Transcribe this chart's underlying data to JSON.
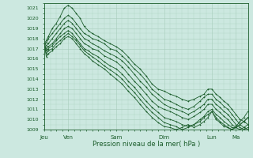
{
  "title": "",
  "xlabel": "Pression niveau de la mer( hPa )",
  "ylabel": "",
  "bg_color": "#cce8e0",
  "grid_color": "#a8ccbc",
  "line_color": "#1a5c2a",
  "ylim": [
    1009,
    1021.5
  ],
  "yticks": [
    1009,
    1010,
    1011,
    1012,
    1013,
    1014,
    1015,
    1016,
    1017,
    1018,
    1019,
    1020,
    1021
  ],
  "day_labels": [
    "Jeu",
    "Ven",
    "Sam",
    "Dim",
    "Lun",
    "Ma"
  ],
  "day_positions": [
    0,
    24,
    72,
    120,
    168,
    192
  ],
  "total_hours": 204,
  "lines": [
    {
      "x": [
        0,
        2,
        4,
        8,
        12,
        16,
        20,
        24,
        28,
        32,
        36,
        40,
        44,
        48,
        54,
        60,
        66,
        72,
        78,
        84,
        90,
        96,
        102,
        108,
        114,
        120,
        126,
        132,
        138,
        144,
        150,
        156,
        160,
        164,
        168,
        172,
        176,
        180,
        184,
        188,
        192,
        196,
        200,
        204
      ],
      "y": [
        1017.5,
        1017.8,
        1018.2,
        1019.0,
        1019.5,
        1020.2,
        1021.0,
        1021.3,
        1021.0,
        1020.5,
        1020.0,
        1019.2,
        1018.8,
        1018.5,
        1018.2,
        1017.8,
        1017.5,
        1017.2,
        1016.8,
        1016.2,
        1015.5,
        1015.0,
        1014.3,
        1013.5,
        1013.0,
        1012.8,
        1012.5,
        1012.3,
        1012.0,
        1011.8,
        1012.0,
        1012.3,
        1012.5,
        1013.0,
        1013.0,
        1012.5,
        1012.2,
        1011.8,
        1011.5,
        1011.0,
        1010.5,
        1010.0,
        1009.8,
        1009.5
      ]
    },
    {
      "x": [
        0,
        2,
        4,
        8,
        12,
        16,
        20,
        24,
        28,
        32,
        36,
        40,
        44,
        48,
        54,
        60,
        66,
        72,
        78,
        84,
        90,
        96,
        102,
        108,
        114,
        120,
        126,
        132,
        138,
        144,
        150,
        156,
        160,
        164,
        168,
        172,
        176,
        180,
        184,
        188,
        192,
        196,
        200,
        204
      ],
      "y": [
        1017.5,
        1017.6,
        1018.0,
        1018.5,
        1019.0,
        1019.5,
        1020.0,
        1020.3,
        1020.0,
        1019.5,
        1019.0,
        1018.5,
        1018.3,
        1018.0,
        1017.8,
        1017.5,
        1017.0,
        1016.8,
        1016.3,
        1015.7,
        1015.0,
        1014.5,
        1013.8,
        1013.0,
        1012.5,
        1012.0,
        1011.8,
        1011.5,
        1011.2,
        1011.0,
        1011.3,
        1011.8,
        1012.2,
        1012.5,
        1012.5,
        1012.0,
        1011.7,
        1011.3,
        1011.0,
        1010.5,
        1010.0,
        1009.5,
        1009.2,
        1009.0
      ]
    },
    {
      "x": [
        0,
        2,
        4,
        8,
        12,
        16,
        20,
        24,
        28,
        32,
        36,
        40,
        44,
        48,
        54,
        60,
        66,
        72,
        78,
        84,
        90,
        96,
        102,
        108,
        114,
        120,
        126,
        132,
        138,
        144,
        150,
        156,
        160,
        164,
        168,
        172,
        176,
        180,
        184,
        188,
        192,
        196,
        200,
        204
      ],
      "y": [
        1017.5,
        1017.3,
        1017.5,
        1018.0,
        1018.5,
        1019.0,
        1019.5,
        1019.8,
        1019.5,
        1019.0,
        1018.5,
        1018.0,
        1017.8,
        1017.5,
        1017.2,
        1016.8,
        1016.5,
        1016.2,
        1015.8,
        1015.2,
        1014.5,
        1013.8,
        1013.2,
        1012.5,
        1012.0,
        1011.5,
        1011.2,
        1011.0,
        1010.8,
        1010.5,
        1010.8,
        1011.2,
        1011.5,
        1012.0,
        1012.0,
        1011.5,
        1011.2,
        1010.8,
        1010.5,
        1010.0,
        1009.5,
        1009.2,
        1009.0,
        1009.2
      ]
    },
    {
      "x": [
        0,
        2,
        4,
        8,
        12,
        16,
        20,
        24,
        28,
        32,
        36,
        40,
        44,
        48,
        54,
        60,
        66,
        72,
        78,
        84,
        90,
        96,
        102,
        108,
        114,
        120,
        126,
        132,
        138,
        144,
        150,
        156,
        160,
        164,
        168,
        172,
        176,
        180,
        184,
        188,
        192,
        196,
        200,
        204
      ],
      "y": [
        1017.5,
        1017.0,
        1017.2,
        1017.5,
        1018.0,
        1018.5,
        1019.0,
        1019.2,
        1019.0,
        1018.5,
        1018.0,
        1017.5,
        1017.3,
        1017.0,
        1016.8,
        1016.3,
        1016.0,
        1015.7,
        1015.2,
        1014.5,
        1013.8,
        1013.2,
        1012.5,
        1011.8,
        1011.3,
        1011.0,
        1010.8,
        1010.5,
        1010.2,
        1010.0,
        1010.3,
        1010.7,
        1011.0,
        1011.5,
        1011.5,
        1011.0,
        1010.7,
        1010.3,
        1010.0,
        1009.5,
        1009.2,
        1009.0,
        1009.2,
        1009.5
      ]
    },
    {
      "x": [
        0,
        2,
        4,
        8,
        12,
        16,
        20,
        24,
        28,
        32,
        36,
        40,
        44,
        48,
        54,
        60,
        66,
        72,
        78,
        84,
        90,
        96,
        102,
        108,
        114,
        120,
        126,
        132,
        138,
        144,
        150,
        156,
        160,
        164,
        168,
        172,
        176,
        180,
        184,
        188,
        192,
        196,
        200,
        204
      ],
      "y": [
        1017.5,
        1016.8,
        1017.0,
        1017.3,
        1017.8,
        1018.2,
        1018.5,
        1018.8,
        1018.5,
        1018.0,
        1017.5,
        1017.0,
        1016.8,
        1016.5,
        1016.2,
        1015.7,
        1015.3,
        1015.0,
        1014.5,
        1013.8,
        1013.2,
        1012.5,
        1011.8,
        1011.2,
        1010.7,
        1010.2,
        1010.0,
        1009.8,
        1009.5,
        1009.3,
        1009.5,
        1010.0,
        1010.3,
        1010.8,
        1011.0,
        1010.5,
        1010.2,
        1009.8,
        1009.5,
        1009.2,
        1009.2,
        1009.5,
        1009.8,
        1010.2
      ]
    },
    {
      "x": [
        0,
        2,
        4,
        8,
        12,
        16,
        20,
        24,
        28,
        32,
        36,
        40,
        44,
        48,
        54,
        60,
        66,
        72,
        78,
        84,
        90,
        96,
        102,
        108,
        114,
        120,
        126,
        132,
        138,
        144,
        150,
        156,
        160,
        164,
        168,
        172,
        176,
        180,
        184,
        188,
        192,
        196,
        200,
        204
      ],
      "y": [
        1017.5,
        1016.5,
        1016.8,
        1017.0,
        1017.5,
        1017.8,
        1018.2,
        1018.5,
        1018.2,
        1017.8,
        1017.3,
        1016.8,
        1016.5,
        1016.2,
        1015.8,
        1015.3,
        1014.9,
        1014.5,
        1014.0,
        1013.3,
        1012.7,
        1012.0,
        1011.3,
        1010.7,
        1010.2,
        1009.7,
        1009.5,
        1009.3,
        1009.0,
        1009.2,
        1009.5,
        1009.8,
        1010.2,
        1010.5,
        1010.8,
        1010.2,
        1009.8,
        1009.5,
        1009.2,
        1009.0,
        1009.2,
        1009.5,
        1009.8,
        1010.2
      ]
    },
    {
      "x": [
        0,
        2,
        4,
        8,
        12,
        16,
        20,
        24,
        28,
        32,
        36,
        40,
        44,
        48,
        54,
        60,
        66,
        72,
        78,
        84,
        90,
        96,
        102,
        108,
        114,
        120,
        126,
        132,
        138,
        144,
        150,
        156,
        160,
        164,
        168,
        172,
        176,
        180,
        184,
        188,
        192,
        196,
        200,
        204
      ],
      "y": [
        1017.5,
        1016.2,
        1016.5,
        1016.8,
        1017.2,
        1017.5,
        1018.0,
        1018.2,
        1018.0,
        1017.5,
        1017.0,
        1016.5,
        1016.2,
        1015.8,
        1015.4,
        1015.0,
        1014.5,
        1014.0,
        1013.5,
        1012.8,
        1012.2,
        1011.5,
        1010.8,
        1010.2,
        1009.7,
        1009.3,
        1009.2,
        1009.0,
        1009.2,
        1009.5,
        1009.2,
        1009.5,
        1009.8,
        1010.2,
        1010.8,
        1010.0,
        1009.7,
        1009.3,
        1009.2,
        1009.0,
        1009.3,
        1009.8,
        1010.2,
        1010.8
      ]
    }
  ]
}
